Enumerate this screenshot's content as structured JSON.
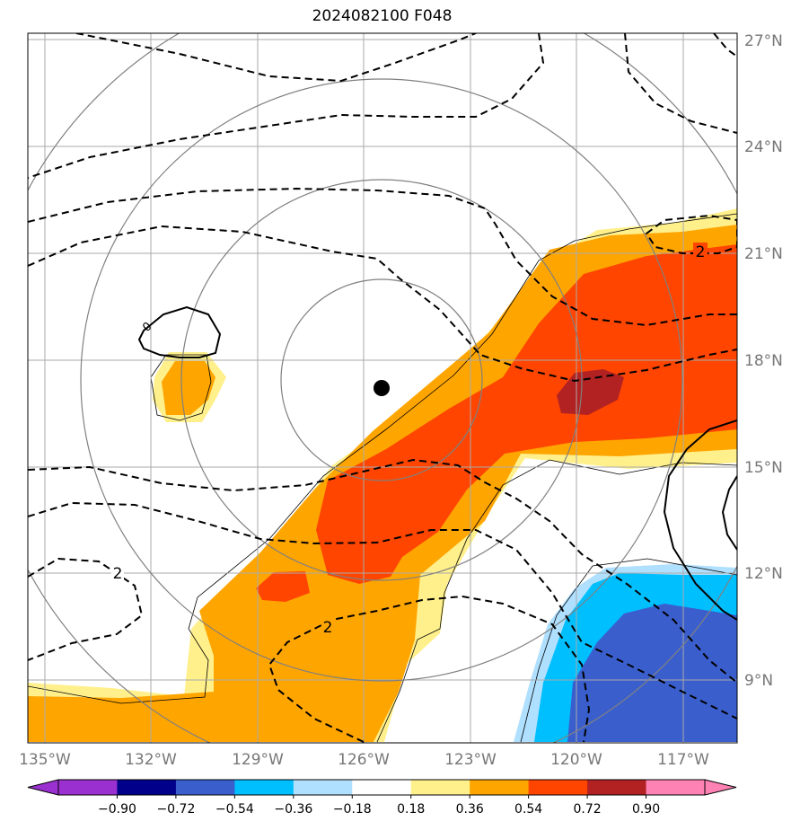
{
  "title": "2024082100 F048",
  "map": {
    "lon_range": [
      -135.2,
      -115.7
    ],
    "lat_range": [
      7.5,
      27.2
    ],
    "lon_ticks": [
      "135°W",
      "132°W",
      "129°W",
      "126°W",
      "123°W",
      "120°W",
      "117°W"
    ],
    "lat_ticks": [
      "9°N",
      "12°N",
      "15°N",
      "18°N",
      "21°N",
      "24°N",
      "27°N"
    ],
    "grid": true,
    "storm_center": {
      "lon": -125.5,
      "lat": 17.3
    },
    "range_rings": "concentric circles about storm center",
    "contour_labels": [
      "2",
      "2",
      "2",
      "0"
    ]
  },
  "colorbar": {
    "tick_labels": [
      "−0.90",
      "−0.72",
      "−0.54",
      "−0.36",
      "−0.18",
      "0.18",
      "0.36",
      "0.54",
      "0.72",
      "0.90"
    ],
    "colors": [
      "#9b30d0",
      "#00008b",
      "#3a5fcd",
      "#00bfff",
      "#b0e0ff",
      "#ffffff",
      "#fff08c",
      "#ffa500",
      "#ff4500",
      "#b22222",
      "#ff82b4",
      "#ff82b4"
    ],
    "extend": "both"
  }
}
